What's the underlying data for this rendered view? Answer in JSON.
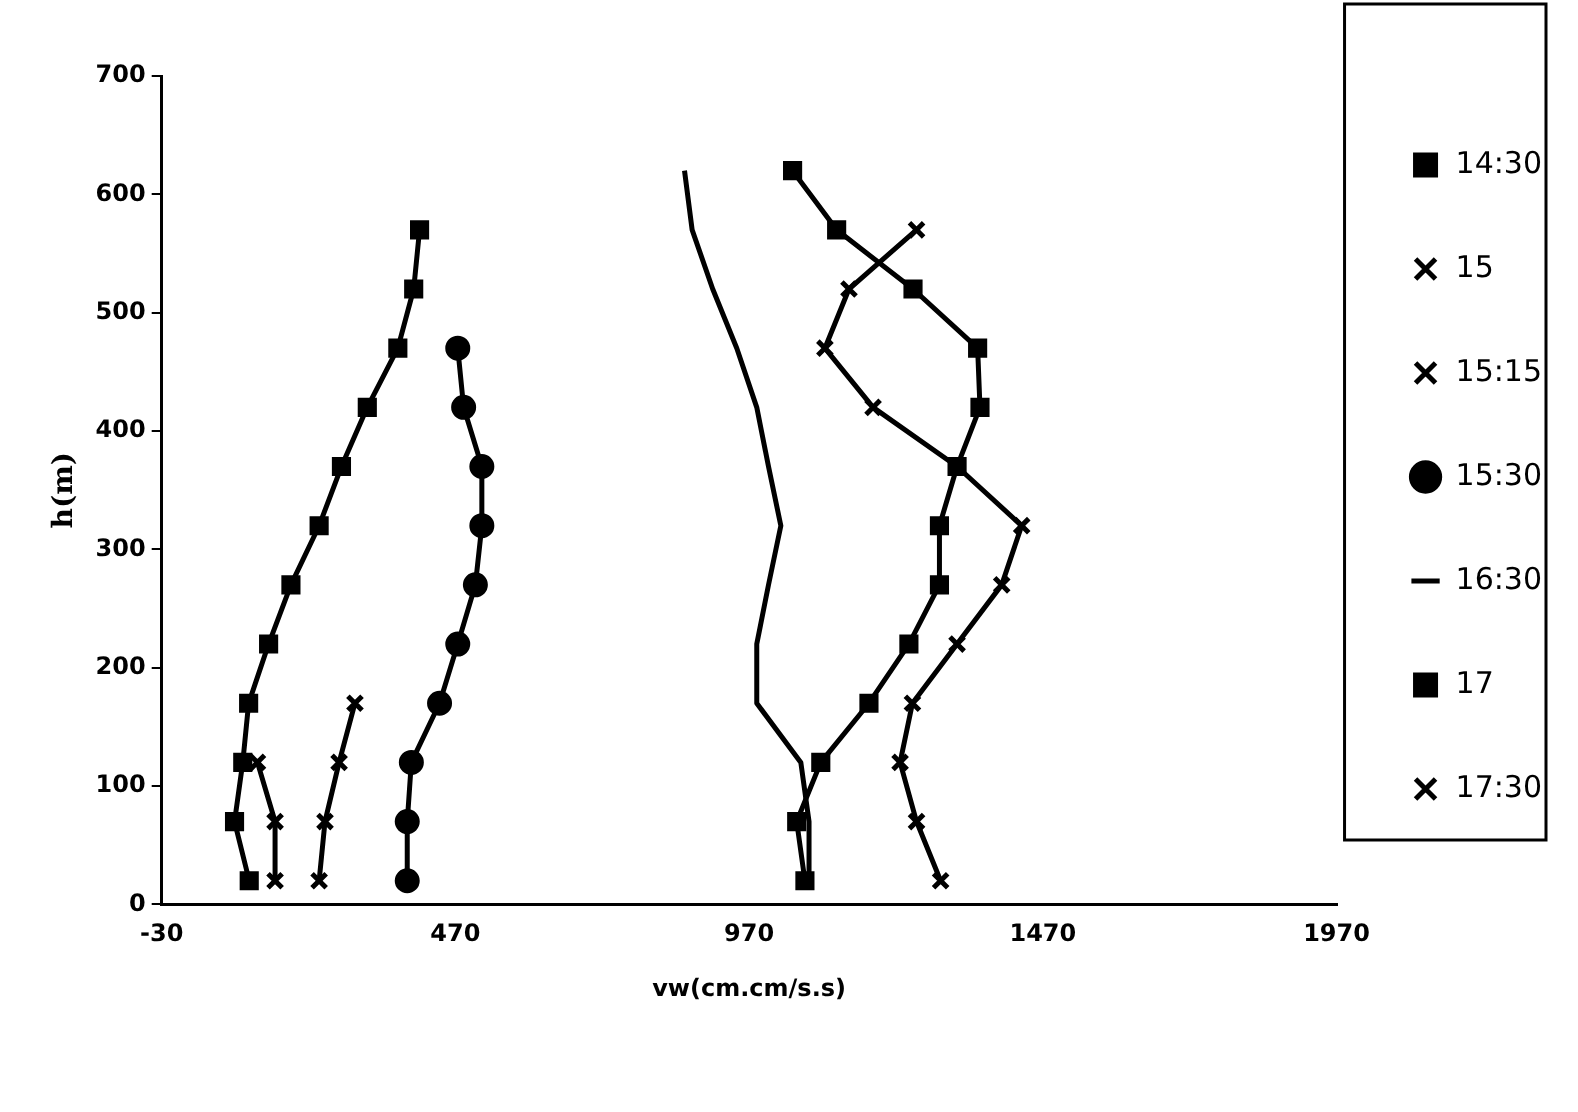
{
  "chart_data": {
    "type": "line",
    "xlabel": "vw(cm.cm/s.s)",
    "ylabel": "h(m)",
    "xlim": [
      -30,
      1970
    ],
    "xticks": [
      -30,
      470,
      970,
      1470,
      1970
    ],
    "ylim": [
      0,
      700
    ],
    "yticks": [
      0,
      100,
      200,
      300,
      400,
      500,
      600,
      700
    ],
    "grid": false,
    "legend": "right",
    "line_style": "solid",
    "series": [
      {
        "name": "14:30",
        "color": "#000000",
        "marker": "square",
        "x": [
          119,
          94,
          108,
          118,
          152,
          190,
          238,
          276,
          320,
          372,
          399,
          409
        ],
        "values": [
          20,
          70,
          120,
          170,
          220,
          270,
          320,
          370,
          420,
          470,
          520,
          570
        ]
      },
      {
        "name": "15",
        "color": "#000000",
        "marker": "cross",
        "x": [
          163,
          163,
          133
        ],
        "values": [
          20,
          70,
          120
        ]
      },
      {
        "name": "15:15",
        "color": "#000000",
        "marker": "cross",
        "x": [
          238,
          248,
          272,
          299
        ],
        "values": [
          20,
          70,
          120,
          170
        ]
      },
      {
        "name": "15:30",
        "color": "#000000",
        "marker": "circle",
        "x": [
          388,
          388,
          395,
          443,
          474,
          504,
          515,
          515,
          484,
          474
        ],
        "values": [
          20,
          70,
          120,
          170,
          220,
          270,
          320,
          370,
          420,
          470
        ]
      },
      {
        "name": "16:30",
        "color": "#000000",
        "marker": "none",
        "x": [
          1072,
          1072,
          1058,
          983,
          983,
          1003,
          1024,
          1003,
          983,
          949,
          908,
          873,
          860
        ],
        "values": [
          20,
          70,
          120,
          170,
          220,
          270,
          320,
          370,
          420,
          470,
          520,
          570,
          620
        ]
      },
      {
        "name": "17",
        "color": "#000000",
        "marker": "square",
        "x": [
          1065,
          1051,
          1092,
          1174,
          1242,
          1294,
          1294,
          1324,
          1363,
          1359,
          1249,
          1119,
          1044
        ],
        "values": [
          20,
          70,
          120,
          170,
          220,
          270,
          320,
          370,
          420,
          470,
          520,
          570,
          620
        ]
      },
      {
        "name": "17:30",
        "color": "#000000",
        "marker": "cross",
        "x": [
          1296,
          1255,
          1227,
          1248,
          1324,
          1400,
          1434,
          1324,
          1181,
          1099,
          1140,
          1255
        ],
        "values": [
          20,
          70,
          120,
          170,
          220,
          270,
          320,
          370,
          420,
          470,
          520,
          570
        ]
      }
    ]
  }
}
